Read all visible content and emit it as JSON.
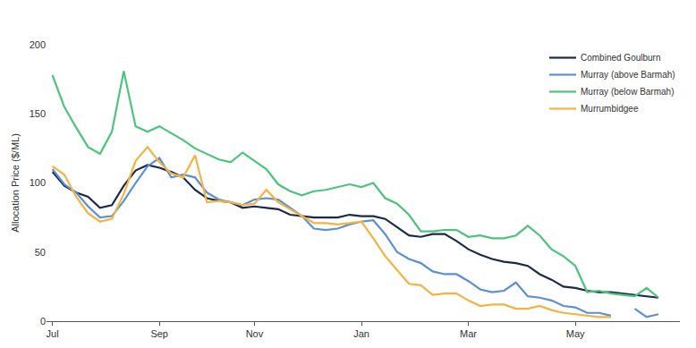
{
  "chart_data": {
    "type": "line",
    "y_label": "Allocation Price ($/ML)",
    "categories": [
      "Jul",
      null,
      null,
      null,
      null,
      null,
      null,
      null,
      null,
      "Sep",
      null,
      null,
      null,
      null,
      null,
      null,
      null,
      "Nov",
      null,
      null,
      null,
      null,
      null,
      null,
      null,
      null,
      "Jan",
      null,
      null,
      null,
      null,
      null,
      null,
      null,
      null,
      "Mar",
      null,
      null,
      null,
      null,
      null,
      null,
      null,
      null,
      "May",
      null,
      null,
      null,
      null,
      null,
      null,
      null
    ],
    "series": [
      {
        "name": "Combined Goulburn",
        "color": "#1b2a4a",
        "values": [
          108,
          98,
          93,
          90,
          82,
          84,
          98,
          109,
          113,
          111,
          108,
          104,
          95,
          89,
          87,
          86,
          82,
          83,
          82,
          81,
          77,
          76,
          75,
          75,
          75,
          77,
          76,
          76,
          74,
          68,
          62,
          61,
          63,
          63,
          58,
          52,
          48,
          45,
          43,
          42,
          40,
          34,
          30,
          25,
          24,
          22,
          21,
          21,
          20,
          19,
          18,
          17
        ]
      },
      {
        "name": "Murray (above Barmah)",
        "color": "#5b8fd6",
        "values": [
          110,
          99,
          93,
          83,
          75,
          76,
          87,
          100,
          112,
          118,
          104,
          106,
          104,
          93,
          88,
          86,
          84,
          88,
          89,
          88,
          82,
          76,
          67,
          66,
          67,
          70,
          72,
          73,
          63,
          50,
          45,
          42,
          36,
          34,
          34,
          29,
          23,
          21,
          22,
          28,
          18,
          17,
          15,
          11,
          10,
          6,
          6,
          4,
          null,
          9,
          3,
          5
        ]
      },
      {
        "name": "Murray (below Barmah)",
        "color": "#4cc47a",
        "values": [
          178,
          155,
          140,
          126,
          121,
          137,
          181,
          141,
          137,
          141,
          136,
          131,
          125,
          121,
          117,
          115,
          122,
          116,
          110,
          99,
          94,
          91,
          94,
          95,
          97,
          99,
          97,
          100,
          89,
          85,
          77,
          65,
          65,
          66,
          66,
          61,
          62,
          60,
          60,
          62,
          69,
          62,
          52,
          47,
          40,
          21,
          22,
          20,
          19,
          18,
          24,
          17
        ]
      },
      {
        "name": "Murrumbidgee",
        "color": "#f5b342",
        "values": [
          112,
          106,
          90,
          78,
          72,
          74,
          92,
          116,
          126,
          115,
          107,
          104,
          120,
          86,
          87,
          86,
          84,
          85,
          95,
          86,
          81,
          76,
          71,
          71,
          70,
          71,
          72,
          60,
          47,
          37,
          27,
          26,
          19,
          20,
          20,
          15,
          11,
          12,
          12,
          9,
          9,
          11,
          8,
          6,
          5,
          4,
          3,
          3,
          null,
          null,
          null,
          null
        ]
      }
    ],
    "ylim": [
      0,
      200
    ],
    "yticks": [
      0,
      50,
      100,
      150,
      200
    ],
    "grid": false,
    "legend": "top right"
  }
}
